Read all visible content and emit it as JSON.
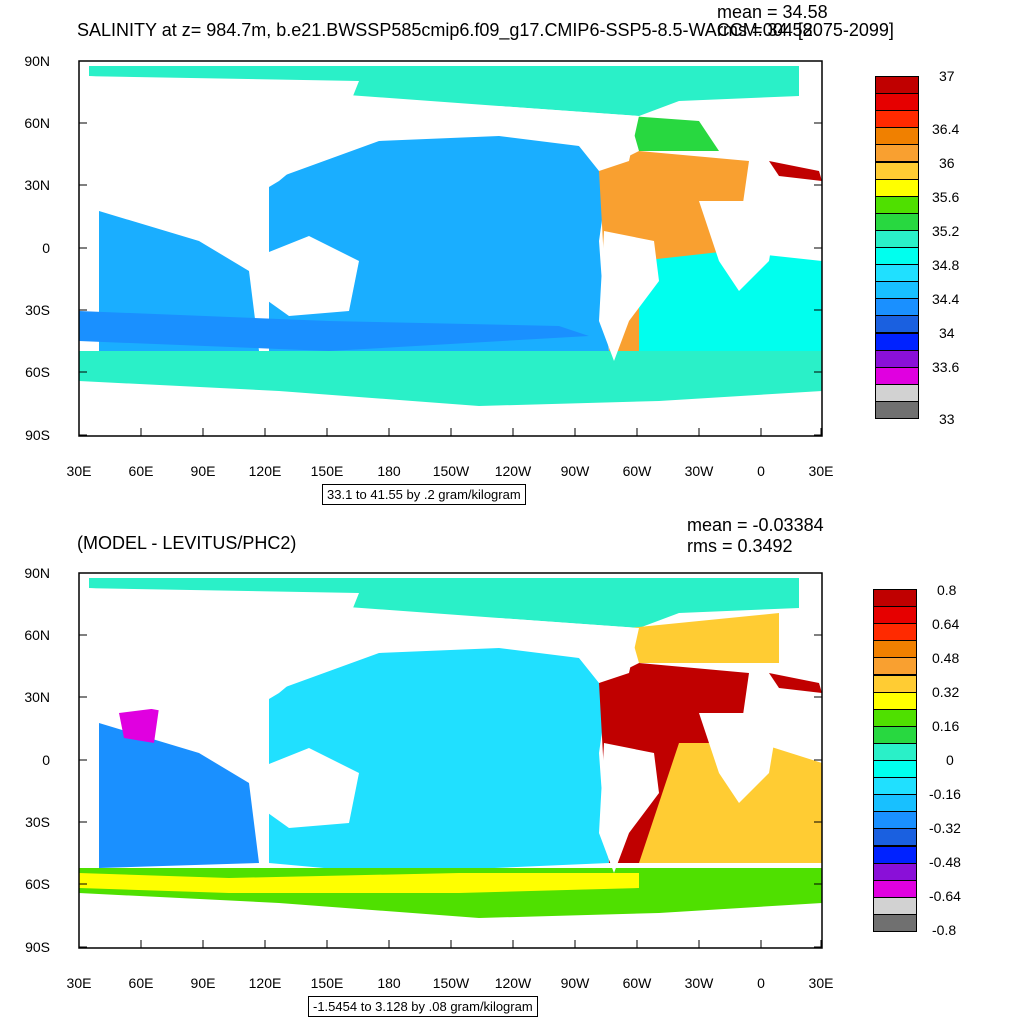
{
  "top": {
    "title": "SALINITY at z= 984.7m, b.e21.BWSSP585cmip6.f09_g17.CMIP6-SSP5-8.5-WACCM.004 [2075-2099]",
    "mean_text": "mean = 34.58",
    "rms_text": "rms = 34.58",
    "contour_info": "33.1 to 41.55 by .2 gram/kilogram",
    "colorbar_labels": [
      "37",
      "36.4",
      "36",
      "35.6",
      "35.2",
      "34.8",
      "34.4",
      "34",
      "33.6",
      "33"
    ],
    "colorbar_colors": [
      "#c00000",
      "#e60000",
      "#ff2a00",
      "#f08000",
      "#f9a030",
      "#ffcc33",
      "#ffff00",
      "#4fe000",
      "#28d840",
      "#2af0c8",
      "#00ffee",
      "#20e0ff",
      "#18c0ff",
      "#1a90ff",
      "#1a60e0",
      "#0022ff",
      "#8a10d8",
      "#e000e0",
      "#d2d2d2",
      "#707070"
    ]
  },
  "bottom": {
    "title": "(MODEL - LEVITUS/PHC2)",
    "mean_text": "mean = -0.03384",
    "rms_text": "rms = 0.3492",
    "contour_info": "-1.5454 to 3.128 by .08 gram/kilogram",
    "colorbar_labels": [
      "0.8",
      "0.64",
      "0.48",
      "0.32",
      "0.16",
      "0",
      "-0.16",
      "-0.32",
      "-0.48",
      "-0.64",
      "-0.8"
    ],
    "colorbar_colors": [
      "#c00000",
      "#e60000",
      "#ff2a00",
      "#f08000",
      "#f9a030",
      "#ffcc33",
      "#ffff00",
      "#4fe000",
      "#28d840",
      "#2af0c8",
      "#00ffee",
      "#20e0ff",
      "#18c0ff",
      "#1a90ff",
      "#1a60e0",
      "#0022ff",
      "#8a10d8",
      "#e000e0",
      "#d2d2d2",
      "#707070"
    ]
  },
  "axes": {
    "lat_labels": [
      "90N",
      "60N",
      "30N",
      "0",
      "30S",
      "60S",
      "90S"
    ],
    "lon_labels": [
      "30E",
      "60E",
      "90E",
      "120E",
      "150E",
      "180",
      "150W",
      "120W",
      "90W",
      "60W",
      "30W",
      "0",
      "30E"
    ]
  },
  "colors": {
    "land": "#ffffff",
    "top_ocean": "#1aaeff",
    "top_arctic": "#2af0c8",
    "top_southern": "#2af0c8",
    "top_atlantic": "#f9a030",
    "bottom_ocean": "#20e0ff",
    "bottom_southern": "#4fe000",
    "bottom_atlantic": "#c00000"
  }
}
